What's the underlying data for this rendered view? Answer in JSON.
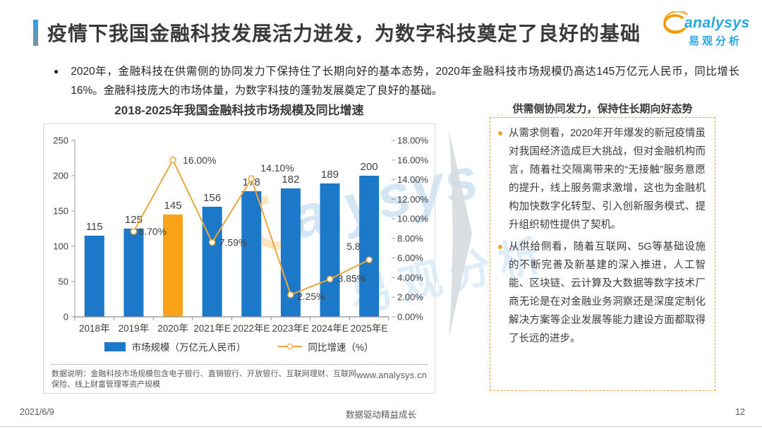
{
  "header": {
    "title": "疫情下我国金融科技发展活力迸发，为数字科技奠定了良好的基础",
    "logo": {
      "brand_en": "analysys",
      "brand_cn": "易观分析",
      "swirl_color": "#F39800",
      "text_color": "#2BA7E0"
    }
  },
  "summary": {
    "bullet": "●",
    "text": "2020年，金融科技在供需侧的协同发力下保持住了长期向好的基本态势，2020年金融科技市场规模仍高达145万亿元人民币，同比增长16%。金融科技庞大的市场体量，为数字科技的蓬勃发展奠定了良好的基础。"
  },
  "chart": {
    "title": "2018-2025年我国金融科技市场规模及同比增速",
    "legend": [
      {
        "label": "市场规模（万亿元人民币）",
        "type": "bar",
        "color": "#1C78C8"
      },
      {
        "label": "同比增速（%）",
        "type": "line",
        "color": "#EDA63C"
      }
    ],
    "footnote": "数据说明：金融科技市场规模包含电子银行、直销银行、开放银行、互联网理财、互联网保险、线上财富管理等资产规模",
    "source_url": "www.analysys.cn"
  },
  "chart_data": {
    "type": "bar+line",
    "title": "2018-2025年我国金融科技市场规模及同比增速",
    "categories": [
      "2018年",
      "2019年",
      "2020年",
      "2021年E",
      "2022年E",
      "2023年E",
      "2024年E",
      "2025年E"
    ],
    "series": [
      {
        "name": "市场规模（万亿元人民币）",
        "type": "bar",
        "axis": "left",
        "values": [
          115,
          125,
          145,
          156,
          178,
          182,
          189,
          200
        ]
      },
      {
        "name": "同比增速（%）",
        "type": "line",
        "axis": "right",
        "values": [
          null,
          8.7,
          16.0,
          7.59,
          14.1,
          2.25,
          3.85,
          5.82
        ],
        "point_labels": [
          null,
          "8.70%",
          "16.00%",
          "7.59%",
          "14.10%",
          "2.25%",
          "3.85%",
          "5.82%"
        ]
      }
    ],
    "left_axis": {
      "min": 0,
      "max": 250,
      "step": 50
    },
    "right_axis": {
      "min": 0,
      "max": 18,
      "step": 2,
      "decimals": 2,
      "suffix": "%"
    },
    "bar_color": "#1C78C8",
    "highlight_bar": {
      "index": 2,
      "color": "#F7A217"
    },
    "line_color": "#EDA63C",
    "grid": false,
    "legend_position": "bottom",
    "label_offsets": [
      null,
      [
        7,
        5,
        "start",
        false
      ],
      [
        14,
        5,
        "start",
        false
      ],
      [
        10,
        5,
        "start",
        false
      ],
      [
        13,
        -10,
        "start",
        false
      ],
      [
        9,
        7,
        "start",
        false
      ],
      [
        11,
        4,
        "start",
        false
      ],
      [
        -32,
        -14,
        "start",
        true
      ]
    ]
  },
  "panel": {
    "title": "供需侧协同发力，保持住长期向好态势",
    "bullets": [
      "从需求侧看，2020年开年爆发的新冠疫情虽对我国经济造成巨大挑战，但对金融机构而言，随着社交隔离带来的“无接触”服务意愿的提升，线上服务需求激增，这也为金融机构加快数字化转型、引入创新服务模式、提升组织韧性提供了契机。",
      "从供给侧看，随着互联网、5G等基础设施的不断完善及新基建的深入推进，人工智能、区块链、云计算及大数据等数字技术厂商无论是在对金融业务洞察还是深度定制化解决方案等企业发展等能力建设方面都取得了长远的进步。"
    ]
  },
  "watermark": {
    "en": "alysys",
    "cn": "易观分析"
  },
  "footer": {
    "date": "2021/6/9",
    "slogan": "数据驱动精益成长",
    "page": "12"
  }
}
